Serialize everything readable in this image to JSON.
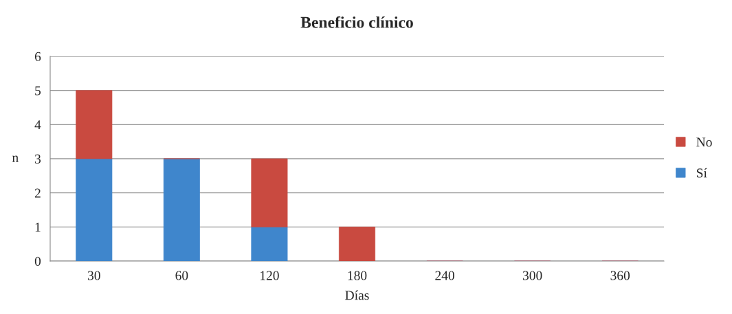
{
  "chart_data": {
    "type": "bar",
    "title": "Beneficio clínico",
    "xlabel": "Días",
    "ylabel": "n",
    "categories": [
      "30",
      "60",
      "120",
      "180",
      "240",
      "300",
      "360"
    ],
    "stacked": true,
    "series": [
      {
        "name": "Sí",
        "color": "#3f86cc",
        "values": [
          3,
          3,
          1,
          0,
          0,
          0,
          0
        ]
      },
      {
        "name": "No",
        "color": "#c94a40",
        "values": [
          2,
          0,
          2,
          1,
          0,
          0,
          0
        ]
      }
    ],
    "ylim": [
      0,
      6
    ],
    "yticks": [
      0,
      1,
      2,
      3,
      4,
      5,
      6
    ],
    "grid": "y",
    "legend": "right"
  }
}
